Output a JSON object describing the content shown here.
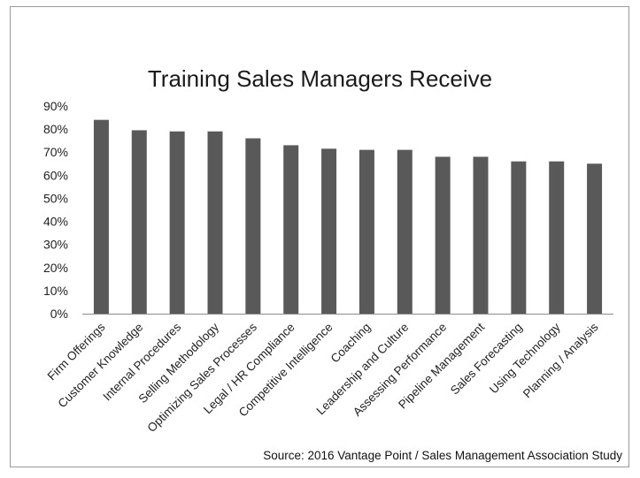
{
  "chart_data": {
    "type": "bar",
    "title": "Training Sales Managers Receive",
    "categories": [
      "Firm Offerings",
      "Customer Knowledge",
      "Internal Procedures",
      "Selling Methodology",
      "Optimizing Sales Processes",
      "Legal / HR Compliance",
      "Competitive Intelligence",
      "Coaching",
      "Leadership and Culture",
      "Assessing Performance",
      "Pipeline Management",
      "Sales Forecasting",
      "Using Technology",
      "Planning / Analysis"
    ],
    "values": [
      84,
      79.5,
      79,
      79,
      76,
      73,
      71.5,
      71,
      71,
      68,
      68,
      66,
      66,
      65
    ],
    "ylim": [
      0,
      90
    ],
    "yticks": [
      "0%",
      "10%",
      "20%",
      "30%",
      "40%",
      "50%",
      "60%",
      "70%",
      "80%",
      "90%"
    ],
    "bar_color": "#595959",
    "grid": false,
    "legend": "none"
  },
  "source": "Source: 2016  Vantage Point / Sales Management Association Study"
}
